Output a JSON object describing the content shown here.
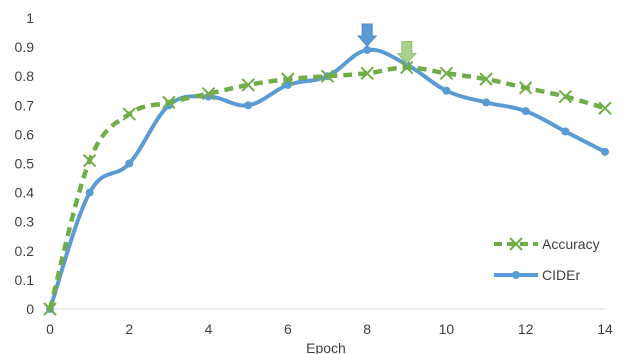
{
  "chart_data": {
    "type": "line",
    "title": "",
    "xlabel": "Epoch",
    "ylabel": "",
    "xlim": [
      0,
      14
    ],
    "ylim": [
      0,
      1
    ],
    "x_ticks": [
      "0",
      "2",
      "4",
      "6",
      "8",
      "10",
      "12",
      "14"
    ],
    "y_ticks": [
      "0",
      "0.1",
      "0.2",
      "0.3",
      "0.4",
      "0.5",
      "0.6",
      "0.7",
      "0.8",
      "0.9",
      "1"
    ],
    "grid": false,
    "legend_position": "bottom-right",
    "series": [
      {
        "name": "Accuracy",
        "color": "#70AD47",
        "style": "dashed",
        "marker": "x",
        "x": [
          0,
          1,
          2,
          3,
          4,
          5,
          6,
          7,
          8,
          9,
          10,
          11,
          12,
          13,
          14
        ],
        "values": [
          0.0,
          0.51,
          0.67,
          0.71,
          0.74,
          0.77,
          0.79,
          0.8,
          0.81,
          0.83,
          0.81,
          0.79,
          0.76,
          0.73,
          0.69
        ]
      },
      {
        "name": "CIDEr",
        "color": "#5B9BD5",
        "style": "solid",
        "marker": "circle",
        "x": [
          0,
          1,
          2,
          3,
          4,
          5,
          6,
          7,
          8,
          9,
          10,
          11,
          12,
          13,
          14
        ],
        "values": [
          0.0,
          0.4,
          0.5,
          0.7,
          0.73,
          0.7,
          0.77,
          0.8,
          0.89,
          0.84,
          0.75,
          0.71,
          0.68,
          0.61,
          0.54
        ]
      }
    ],
    "annotations": [
      {
        "type": "arrow-down",
        "x": 8,
        "series": "CIDEr",
        "color": "#5B9BD5"
      },
      {
        "type": "arrow-down",
        "x": 9,
        "series": "Accuracy",
        "color": "#A9D18E"
      }
    ]
  }
}
